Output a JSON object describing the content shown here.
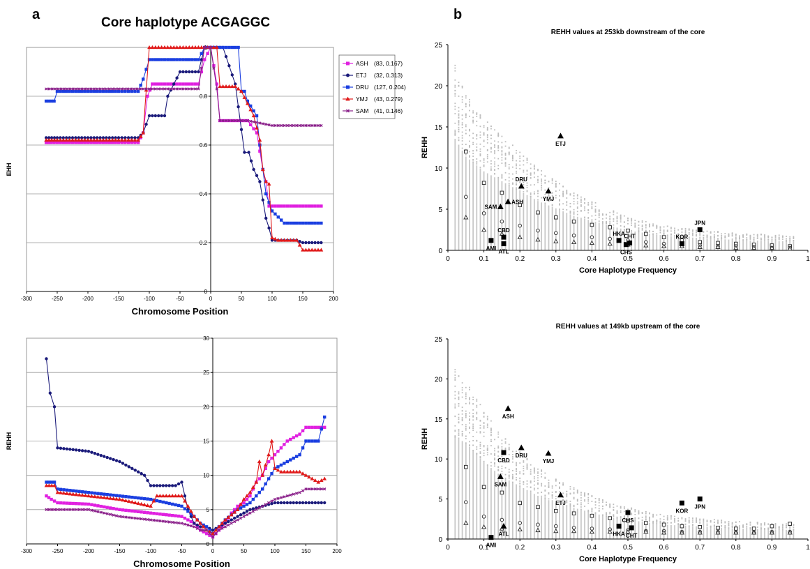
{
  "panel_a": {
    "letter": "a",
    "title": "Core haplotype ACGAGGC"
  },
  "panel_b": {
    "letter": "b"
  },
  "chart_data": [
    {
      "id": "ehh",
      "type": "line",
      "title": "",
      "xlabel": "Chromosome Position",
      "ylabel": "EHH",
      "xlim": [
        -300,
        200
      ],
      "ylim": [
        0,
        1
      ],
      "xticks": [
        -300,
        -250,
        -200,
        -150,
        -100,
        -50,
        0,
        50,
        100,
        150,
        200
      ],
      "yticks": [
        0,
        0.2,
        0.4,
        0.6,
        0.8,
        1
      ],
      "grid": true,
      "legend_position": "top-right",
      "series": [
        {
          "name": "ASH",
          "legend": "(83, 0.167)",
          "color": "#e020e0",
          "marker": "square",
          "x": [
            -268,
            -260,
            -200,
            -150,
            -118,
            -110,
            -103,
            -95,
            -70,
            -45,
            -30,
            -20,
            -10,
            0,
            10,
            15,
            20,
            40,
            60,
            75,
            85,
            90,
            95,
            100,
            110,
            140,
            180
          ],
          "y": [
            0.61,
            0.61,
            0.61,
            0.61,
            0.61,
            0.65,
            0.8,
            0.85,
            0.85,
            0.85,
            0.85,
            0.85,
            0.95,
            1.0,
            0.85,
            0.7,
            0.7,
            0.7,
            0.7,
            0.65,
            0.5,
            0.45,
            0.35,
            0.35,
            0.35,
            0.35,
            0.35
          ]
        },
        {
          "name": "ETJ",
          "legend": "(32, 0.313)",
          "color": "#1a1a7a",
          "marker": "circle",
          "x": [
            -268,
            -250,
            -200,
            -150,
            -118,
            -110,
            -100,
            -75,
            -70,
            -50,
            -30,
            -20,
            -10,
            0,
            10,
            20,
            40,
            55,
            62,
            70,
            80,
            90,
            95,
            100,
            110,
            140,
            150,
            180
          ],
          "y": [
            0.63,
            0.63,
            0.63,
            0.63,
            0.63,
            0.65,
            0.72,
            0.72,
            0.8,
            0.9,
            0.9,
            0.9,
            1.0,
            1.0,
            1.0,
            1.0,
            0.85,
            0.57,
            0.57,
            0.5,
            0.45,
            0.3,
            0.26,
            0.21,
            0.21,
            0.21,
            0.2,
            0.2
          ]
        },
        {
          "name": "DRU",
          "legend": "(127, 0.204)",
          "color": "#1a3ee0",
          "marker": "square",
          "x": [
            -268,
            -255,
            -250,
            -200,
            -150,
            -118,
            -110,
            -100,
            -50,
            -20,
            -10,
            0,
            10,
            20,
            30,
            45,
            50,
            55,
            60,
            75,
            80,
            85,
            90,
            100,
            120,
            180
          ],
          "y": [
            0.78,
            0.78,
            0.82,
            0.82,
            0.82,
            0.82,
            0.87,
            0.95,
            0.95,
            0.95,
            1.0,
            1.0,
            1.0,
            1.0,
            1.0,
            1.0,
            0.82,
            0.82,
            0.78,
            0.72,
            0.6,
            0.5,
            0.4,
            0.33,
            0.28,
            0.28
          ]
        },
        {
          "name": "YMJ",
          "legend": "(43, 0.279)",
          "color": "#e01a1a",
          "marker": "triangle",
          "x": [
            -268,
            -250,
            -200,
            -150,
            -118,
            -110,
            -100,
            -50,
            -20,
            -10,
            0,
            10,
            15,
            20,
            40,
            50,
            60,
            70,
            80,
            85,
            90,
            95,
            100,
            110,
            140,
            150,
            180
          ],
          "y": [
            0.62,
            0.62,
            0.62,
            0.62,
            0.62,
            0.65,
            1.0,
            1.0,
            1.0,
            1.0,
            1.0,
            1.0,
            0.84,
            0.84,
            0.84,
            0.82,
            0.77,
            0.72,
            0.62,
            0.5,
            0.45,
            0.44,
            0.22,
            0.21,
            0.21,
            0.17,
            0.17
          ]
        },
        {
          "name": "SAM",
          "legend": "(41, 0.146)",
          "color": "#8a208a",
          "marker": "cross",
          "x": [
            -268,
            -200,
            -150,
            -100,
            -50,
            -20,
            -10,
            0,
            10,
            15,
            20,
            60,
            100,
            140,
            180
          ],
          "y": [
            0.83,
            0.83,
            0.83,
            0.83,
            0.83,
            0.83,
            1.0,
            1.0,
            0.83,
            0.7,
            0.7,
            0.7,
            0.68,
            0.68,
            0.68
          ]
        }
      ]
    },
    {
      "id": "rehh-line",
      "type": "line",
      "title": "",
      "xlabel": "Chromosome Position",
      "ylabel": "REHH",
      "xlim": [
        -300,
        200
      ],
      "ylim": [
        0,
        30
      ],
      "xticks": [
        -300,
        -250,
        -200,
        -150,
        -100,
        -50,
        0,
        50,
        100,
        150,
        200
      ],
      "yticks": [
        0,
        5,
        10,
        15,
        20,
        25,
        30
      ],
      "grid": true,
      "series": [
        {
          "name": "ASH",
          "color": "#e020e0",
          "marker": "square",
          "x": [
            -268,
            -260,
            -250,
            -200,
            -150,
            -100,
            -50,
            -30,
            -20,
            -10,
            0,
            10,
            20,
            30,
            40,
            50,
            60,
            70,
            80,
            90,
            100,
            110,
            120,
            140,
            150,
            170,
            180
          ],
          "y": [
            7.0,
            6.5,
            6.0,
            5.8,
            5.0,
            4.5,
            4.0,
            3.0,
            2.0,
            1.5,
            1.0,
            2.0,
            3.0,
            4.5,
            5.5,
            6.0,
            7.0,
            9.0,
            10.0,
            12.0,
            13.0,
            14.0,
            15.0,
            16.0,
            17.0,
            17.0,
            17.0
          ]
        },
        {
          "name": "ETJ",
          "color": "#1a1a7a",
          "marker": "circle",
          "x": [
            -268,
            -262,
            -255,
            -250,
            -200,
            -150,
            -110,
            -100,
            -60,
            -50,
            -40,
            -30,
            -20,
            -10,
            0,
            10,
            20,
            40,
            60,
            80,
            100,
            140,
            170,
            180
          ],
          "y": [
            27.0,
            22.0,
            20.0,
            14.0,
            13.5,
            12.0,
            10.0,
            8.5,
            8.5,
            9.0,
            5.0,
            3.0,
            2.5,
            2.5,
            2.0,
            2.5,
            3.0,
            4.0,
            5.0,
            5.5,
            6.0,
            6.0,
            6.0,
            6.0
          ]
        },
        {
          "name": "DRU",
          "color": "#1a3ee0",
          "marker": "square",
          "x": [
            -268,
            -255,
            -250,
            -200,
            -150,
            -100,
            -50,
            -30,
            -20,
            -10,
            0,
            10,
            20,
            40,
            60,
            80,
            100,
            120,
            140,
            150,
            170,
            180
          ],
          "y": [
            9.0,
            9.0,
            8.0,
            7.5,
            7.0,
            6.5,
            5.5,
            4.0,
            3.0,
            2.5,
            1.5,
            2.5,
            3.5,
            5.0,
            6.0,
            8.0,
            11.0,
            12.0,
            13.0,
            15.0,
            15.0,
            18.5
          ]
        },
        {
          "name": "YMJ",
          "color": "#e01a1a",
          "marker": "triangle",
          "x": [
            -268,
            -255,
            -250,
            -200,
            -150,
            -100,
            -90,
            -50,
            -30,
            -20,
            -10,
            0,
            10,
            20,
            40,
            50,
            60,
            70,
            75,
            80,
            90,
            95,
            100,
            110,
            140,
            170,
            180
          ],
          "y": [
            8.5,
            8.5,
            7.5,
            7.0,
            6.5,
            5.5,
            7.0,
            7.0,
            4.0,
            3.0,
            2.0,
            1.5,
            2.5,
            3.5,
            5.0,
            6.5,
            7.5,
            9.0,
            12.0,
            10.0,
            13.0,
            15.0,
            11.0,
            10.5,
            10.5,
            9.0,
            9.5
          ]
        },
        {
          "name": "SAM",
          "color": "#8a208a",
          "marker": "cross",
          "x": [
            -268,
            -250,
            -200,
            -150,
            -100,
            -50,
            -30,
            -20,
            -10,
            0,
            10,
            20,
            40,
            60,
            80,
            100,
            120,
            140,
            150,
            170,
            180
          ],
          "y": [
            5.0,
            5.0,
            5.0,
            4.0,
            3.5,
            3.0,
            2.5,
            2.0,
            2.0,
            1.0,
            2.0,
            2.5,
            3.5,
            4.5,
            5.5,
            6.5,
            7.0,
            7.5,
            8.0,
            8.0,
            8.0
          ]
        }
      ]
    },
    {
      "id": "rehh-253",
      "type": "scatter",
      "title": "REHH values at 253kb downstream of the core",
      "xlabel": "Core Haplotype Frequency",
      "ylabel": "REHH",
      "xlim": [
        0,
        1
      ],
      "ylim": [
        0,
        25
      ],
      "xticks": [
        0,
        0.1,
        0.2,
        0.3,
        0.4,
        0.5,
        0.6,
        0.7,
        0.8,
        0.9,
        1
      ],
      "xtick_labels": [
        "0",
        "0.1",
        "0.2",
        "0.3",
        "0.4",
        "0.5",
        "0.6",
        "0.7",
        "0.8",
        "0.9",
        "1"
      ],
      "yticks": [
        0,
        5,
        10,
        15,
        20,
        25
      ],
      "background_max": [
        25,
        19,
        16,
        14,
        12,
        10,
        8.5,
        7,
        6,
        5,
        4,
        3.5,
        3,
        2.7,
        2.5,
        2.3,
        2.1,
        2.0,
        1.9,
        1.8
      ],
      "percentile_open_square": [
        12.0,
        8.2,
        7.0,
        5.5,
        4.6,
        4.0,
        3.5,
        3.1,
        2.8,
        2.4,
        2.0,
        1.6,
        1.2,
        1.0,
        0.9,
        0.8,
        0.7,
        0.6,
        0.5
      ],
      "percentile_open_circle": [
        6.5,
        4.5,
        3.5,
        3.0,
        2.4,
        2.1,
        1.8,
        1.6,
        1.4,
        1.2,
        1.0,
        0.8,
        0.7,
        0.6,
        0.5,
        0.5,
        0.4,
        0.3,
        0.3
      ],
      "percentile_open_triangle": [
        4.0,
        2.5,
        2.0,
        1.6,
        1.3,
        1.1,
        1.0,
        0.9,
        0.8,
        0.7,
        0.6,
        0.5,
        0.5,
        0.4,
        0.4,
        0.3,
        0.3,
        0.3,
        0.2
      ],
      "points": [
        {
          "label": "ETJ",
          "x": 0.313,
          "y": 13.9,
          "marker": "triangle",
          "label_pos": "below"
        },
        {
          "label": "DRU",
          "x": 0.204,
          "y": 7.8,
          "marker": "triangle",
          "label_pos": "above"
        },
        {
          "label": "YMJ",
          "x": 0.279,
          "y": 7.2,
          "marker": "triangle",
          "label_pos": "below"
        },
        {
          "label": "ASH",
          "x": 0.167,
          "y": 5.9,
          "marker": "triangle",
          "label_pos": "right"
        },
        {
          "label": "SAM",
          "x": 0.146,
          "y": 5.3,
          "marker": "triangle",
          "label_pos": "left"
        },
        {
          "label": "CBD",
          "x": 0.155,
          "y": 1.6,
          "marker": "square",
          "label_pos": "above"
        },
        {
          "label": "AMI",
          "x": 0.12,
          "y": 1.2,
          "marker": "square",
          "label_pos": "below"
        },
        {
          "label": "ATL",
          "x": 0.155,
          "y": 0.8,
          "marker": "square",
          "label_pos": "below"
        },
        {
          "label": "HKA",
          "x": 0.475,
          "y": 1.2,
          "marker": "square",
          "label_pos": "above"
        },
        {
          "label": "CHT",
          "x": 0.505,
          "y": 0.9,
          "marker": "square",
          "label_pos": "above"
        },
        {
          "label": "CHS",
          "x": 0.495,
          "y": 0.7,
          "marker": "square",
          "label_pos": "below"
        },
        {
          "label": "KOR",
          "x": 0.65,
          "y": 0.8,
          "marker": "square",
          "label_pos": "above"
        },
        {
          "label": "JPN",
          "x": 0.7,
          "y": 2.5,
          "marker": "square",
          "label_pos": "above"
        }
      ]
    },
    {
      "id": "rehh-149",
      "type": "scatter",
      "title": "REHH values at 149kb upstream of the core",
      "xlabel": "Core Haplotype Frequency",
      "ylabel": "REHH",
      "xlim": [
        0,
        1
      ],
      "ylim": [
        0,
        25
      ],
      "xticks": [
        0,
        0.1,
        0.2,
        0.3,
        0.4,
        0.5,
        0.6,
        0.7,
        0.8,
        0.9,
        1
      ],
      "xtick_labels": [
        "0",
        "0.1",
        "0.2",
        "0.3",
        "0.4",
        "0.5",
        "0.6",
        "0.7",
        "0.8",
        "0.9",
        "1"
      ],
      "yticks": [
        0,
        5,
        10,
        15,
        20,
        25
      ],
      "background_max": [
        22,
        20,
        16,
        13,
        11,
        9,
        7.5,
        6.5,
        5.5,
        4.5,
        4.0,
        3.5,
        3.0,
        2.8,
        2.6,
        2.4,
        2.2,
        2.1,
        2.0,
        1.9
      ],
      "percentile_open_square": [
        9.0,
        6.5,
        5.8,
        4.5,
        4.0,
        3.5,
        3.2,
        2.9,
        2.6,
        2.3,
        2.0,
        1.8,
        1.6,
        1.5,
        1.4,
        1.3,
        1.3,
        1.6,
        1.9
      ],
      "percentile_open_circle": [
        4.6,
        2.8,
        2.4,
        2.0,
        1.8,
        1.6,
        1.4,
        1.3,
        1.2,
        1.1,
        1.0,
        1.0,
        0.9,
        0.9,
        0.9,
        0.8,
        0.8,
        0.9,
        0.9
      ],
      "percentile_open_triangle": [
        2.0,
        1.5,
        1.3,
        1.2,
        1.1,
        1.0,
        1.0,
        0.9,
        0.9,
        0.9,
        0.9,
        0.8,
        0.8,
        0.8,
        0.8,
        0.8,
        0.8,
        0.8,
        0.8
      ],
      "points": [
        {
          "label": "ASH",
          "x": 0.167,
          "y": 16.3,
          "marker": "triangle",
          "label_pos": "below"
        },
        {
          "label": "CBD",
          "x": 0.155,
          "y": 10.8,
          "marker": "square",
          "label_pos": "below"
        },
        {
          "label": "DRU",
          "x": 0.204,
          "y": 11.4,
          "marker": "triangle",
          "label_pos": "below"
        },
        {
          "label": "YMJ",
          "x": 0.279,
          "y": 10.7,
          "marker": "triangle",
          "label_pos": "below"
        },
        {
          "label": "SAM",
          "x": 0.146,
          "y": 7.8,
          "marker": "triangle",
          "label_pos": "below"
        },
        {
          "label": "ETJ",
          "x": 0.313,
          "y": 5.5,
          "marker": "triangle",
          "label_pos": "below"
        },
        {
          "label": "ATL",
          "x": 0.155,
          "y": 1.6,
          "marker": "triangle",
          "label_pos": "below"
        },
        {
          "label": "AMI",
          "x": 0.12,
          "y": 0.2,
          "marker": "square",
          "label_pos": "below"
        },
        {
          "label": "CHS",
          "x": 0.5,
          "y": 3.3,
          "marker": "square",
          "label_pos": "below"
        },
        {
          "label": "HKA",
          "x": 0.475,
          "y": 1.6,
          "marker": "square",
          "label_pos": "below"
        },
        {
          "label": "CHT",
          "x": 0.51,
          "y": 1.4,
          "marker": "square",
          "label_pos": "below"
        },
        {
          "label": "KOR",
          "x": 0.65,
          "y": 4.5,
          "marker": "square",
          "label_pos": "below"
        },
        {
          "label": "JPN",
          "x": 0.7,
          "y": 5.0,
          "marker": "square",
          "label_pos": "below"
        }
      ]
    }
  ]
}
